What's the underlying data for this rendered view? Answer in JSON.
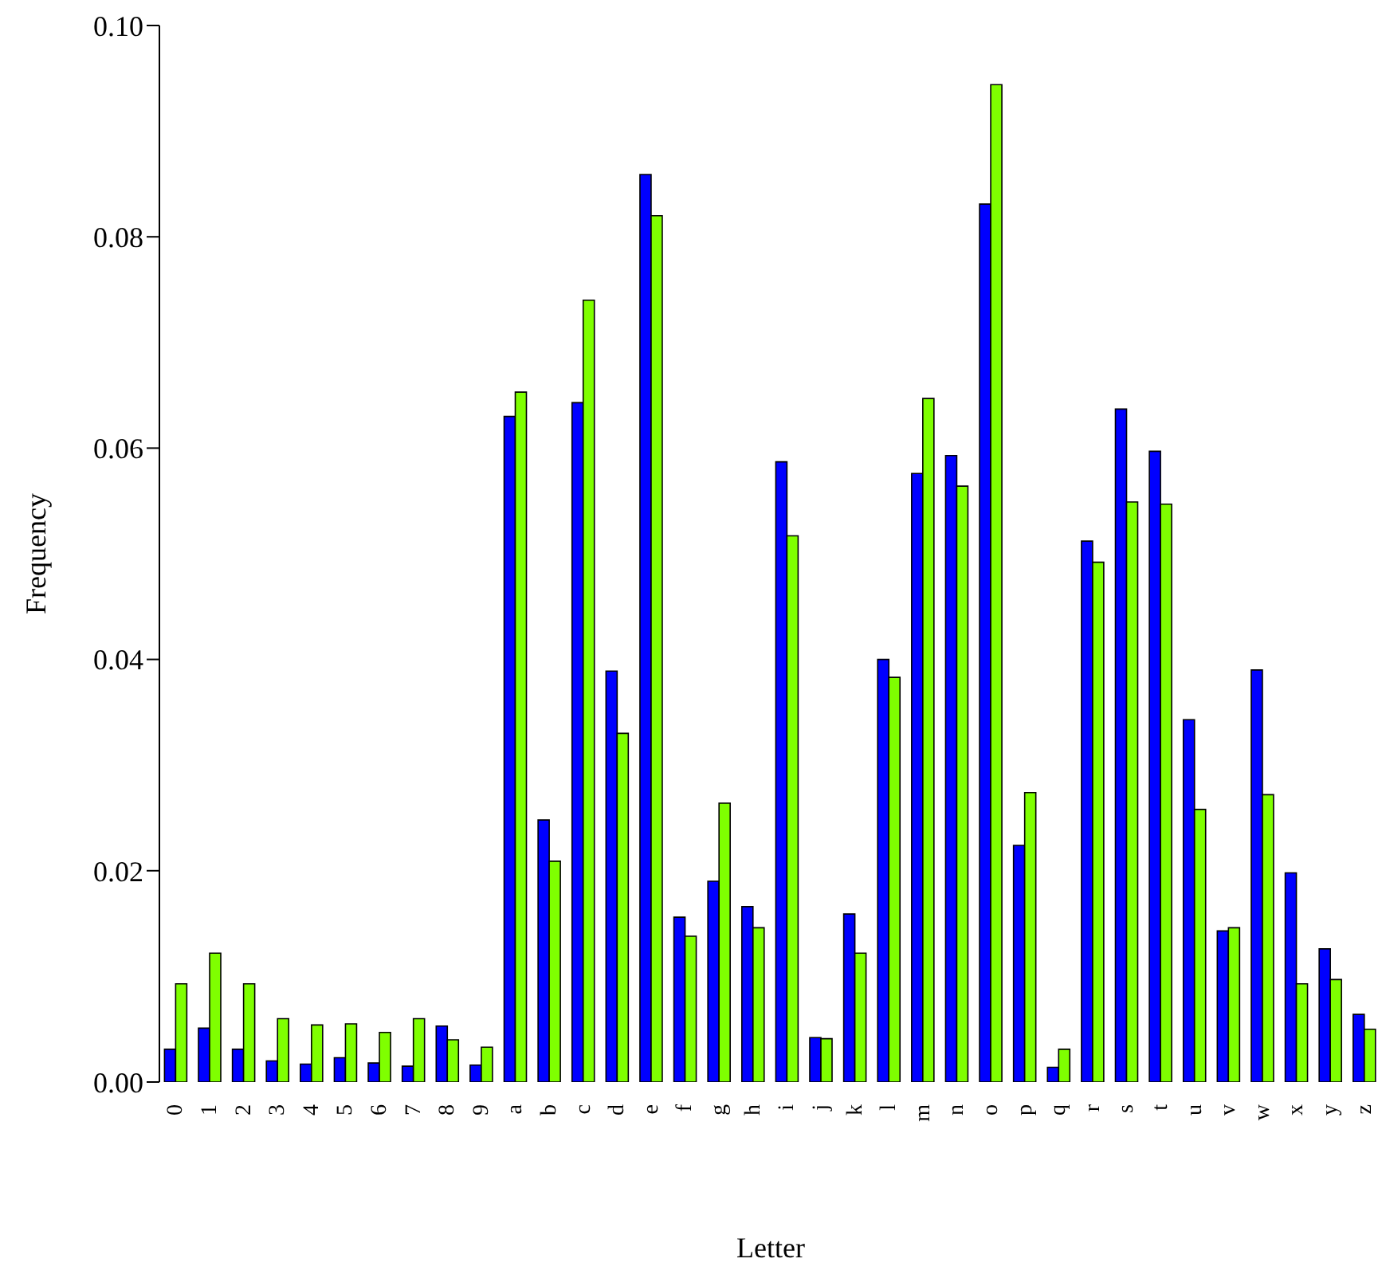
{
  "chart_data": {
    "type": "bar",
    "xlabel": "Letter",
    "ylabel": "Frequency",
    "categories": [
      "0",
      "1",
      "2",
      "3",
      "4",
      "5",
      "6",
      "7",
      "8",
      "9",
      "a",
      "b",
      "c",
      "d",
      "e",
      "f",
      "g",
      "h",
      "i",
      "j",
      "k",
      "l",
      "m",
      "n",
      "o",
      "p",
      "q",
      "r",
      "s",
      "t",
      "u",
      "v",
      "w",
      "x",
      "y",
      "z"
    ],
    "series": [
      {
        "color": "#0000ff",
        "values": [
          0.0031,
          0.0051,
          0.0031,
          0.002,
          0.0017,
          0.0023,
          0.0018,
          0.0015,
          0.0053,
          0.0016,
          0.063,
          0.0248,
          0.0643,
          0.0389,
          0.0859,
          0.0156,
          0.019,
          0.0166,
          0.0587,
          0.0042,
          0.0159,
          0.04,
          0.0576,
          0.0593,
          0.0831,
          0.0224,
          0.0014,
          0.0512,
          0.0637,
          0.0597,
          0.0343,
          0.0143,
          0.039,
          0.0198,
          0.0126,
          0.0064
        ]
      },
      {
        "color": "#7fff00",
        "values": [
          0.0093,
          0.0122,
          0.0093,
          0.006,
          0.0054,
          0.0055,
          0.0047,
          0.006,
          0.004,
          0.0033,
          0.0653,
          0.0209,
          0.074,
          0.033,
          0.082,
          0.0138,
          0.0264,
          0.0146,
          0.0517,
          0.0041,
          0.0122,
          0.0383,
          0.0647,
          0.0564,
          0.0944,
          0.0274,
          0.0031,
          0.0492,
          0.0549,
          0.0547,
          0.0258,
          0.0146,
          0.0272,
          0.0093,
          0.0097,
          0.005
        ]
      }
    ],
    "ylim": [
      0,
      0.1
    ],
    "yticks": [
      {
        "value": 0,
        "label": "0.00"
      },
      {
        "value": 0.02,
        "label": "0.02"
      },
      {
        "value": 0.04,
        "label": "0.04"
      },
      {
        "value": 0.06,
        "label": "0.06"
      },
      {
        "value": 0.08,
        "label": "0.08"
      },
      {
        "value": 0.1,
        "label": "0.10"
      }
    ],
    "grid": false,
    "legend": false
  }
}
